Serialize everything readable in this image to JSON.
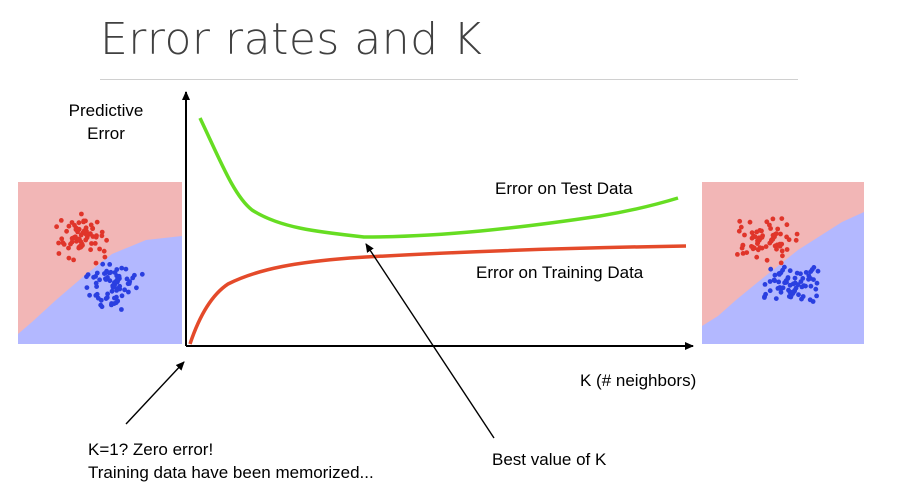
{
  "slide": {
    "title": "Error rates and K"
  },
  "axes": {
    "y_label_line1": "Predictive",
    "y_label_line2": "Error",
    "x_label": "K (# neighbors)"
  },
  "curves": {
    "test_label": "Error on Test Data",
    "train_label": "Error on Training Data",
    "test_color": "#66dd22",
    "train_color": "#e44a2a"
  },
  "annotations": {
    "k1_line1": "K=1?  Zero error!",
    "k1_line2": "Training data have been memorized...",
    "best_k": "Best value of K"
  },
  "decision_panels": {
    "red_region_color": "#f2b6b6",
    "blue_region_color": "#b3b8ff",
    "red_point_color": "#e0352a",
    "blue_point_color": "#2a3fe0"
  }
}
